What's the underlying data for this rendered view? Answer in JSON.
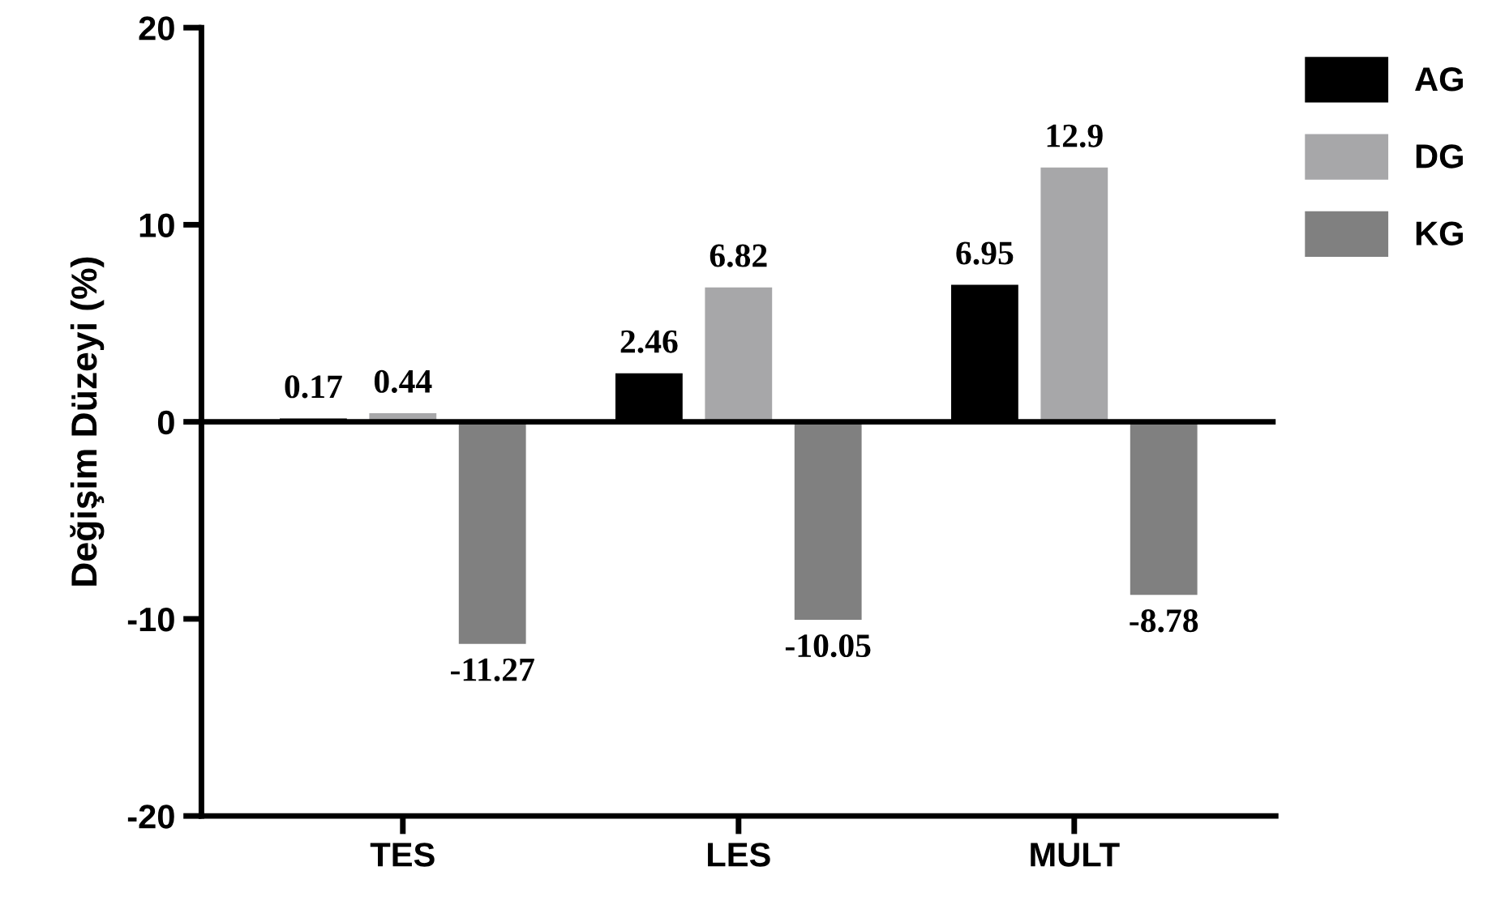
{
  "chart_data": {
    "type": "bar",
    "ylabel": "Değişim Düzeyi (%)",
    "categories": [
      "TES",
      "LES",
      "MULT"
    ],
    "series": [
      {
        "name": "AG",
        "color": "#000000",
        "values": [
          0.17,
          2.46,
          6.95
        ]
      },
      {
        "name": "DG",
        "color": "#a7a7a9",
        "values": [
          0.44,
          6.82,
          12.9
        ]
      },
      {
        "name": "KG",
        "color": "#808080",
        "values": [
          -11.27,
          -10.05,
          -8.78
        ]
      }
    ],
    "ylim": [
      -20,
      20
    ],
    "yticks": [
      -20,
      -10,
      0,
      10,
      20
    ],
    "ref_lines": [
      {
        "axis": "y",
        "value": 0,
        "color": "#000000"
      }
    ],
    "data_labels": true,
    "legend": "top right",
    "grid": false
  }
}
